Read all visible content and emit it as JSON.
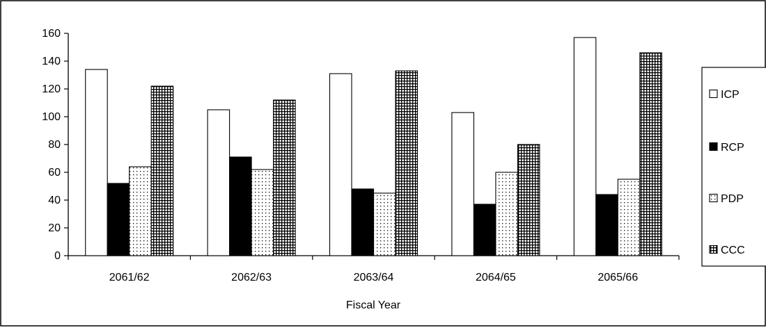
{
  "chart_data": {
    "type": "bar",
    "xlabel": "Fiscal Year",
    "ylabel": "",
    "ylim": [
      0,
      160
    ],
    "yticks": [
      0,
      20,
      40,
      60,
      80,
      100,
      120,
      140,
      160
    ],
    "grid": false,
    "legend_position": "right",
    "categories": [
      "2061/62",
      "2062/63",
      "2063/64",
      "2064/65",
      "2065/66"
    ],
    "series": [
      {
        "name": "ICP",
        "values": [
          134,
          105,
          131,
          103,
          157
        ],
        "fill": "white"
      },
      {
        "name": "RCP",
        "values": [
          52,
          71,
          48,
          37,
          44
        ],
        "fill": "black"
      },
      {
        "name": "PDP",
        "values": [
          64,
          62,
          45,
          60,
          55
        ],
        "fill": "dots"
      },
      {
        "name": "CCC",
        "values": [
          122,
          112,
          133,
          80,
          146
        ],
        "fill": "grid"
      }
    ]
  }
}
